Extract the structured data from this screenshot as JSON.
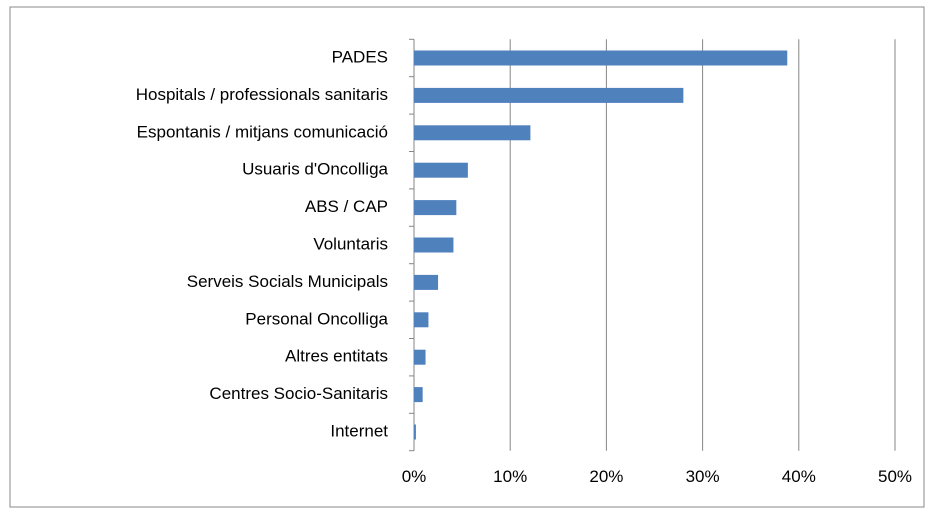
{
  "chart_data": {
    "type": "bar",
    "orientation": "horizontal",
    "categories": [
      "PADES",
      "Hospitals / professionals sanitaris",
      "Espontanis / mitjans comunicació",
      "Usuaris d'Oncolliga",
      "ABS / CAP",
      "Voluntaris",
      "Serveis Socials Municipals",
      "Personal Oncolliga",
      "Altres entitats",
      "Centres Socio-Sanitaris",
      "Internet"
    ],
    "values": [
      38.8,
      28.0,
      12.1,
      5.6,
      4.4,
      4.1,
      2.5,
      1.5,
      1.2,
      0.9,
      0.2
    ],
    "color": "#4f81bd",
    "xlim": [
      0,
      50
    ],
    "xticks": [
      {
        "value": 0,
        "label": "0%"
      },
      {
        "value": 10,
        "label": "10%"
      },
      {
        "value": 20,
        "label": "20%"
      },
      {
        "value": 30,
        "label": "30%"
      },
      {
        "value": 40,
        "label": "40%"
      },
      {
        "value": 50,
        "label": "50%"
      }
    ],
    "grid": true
  }
}
